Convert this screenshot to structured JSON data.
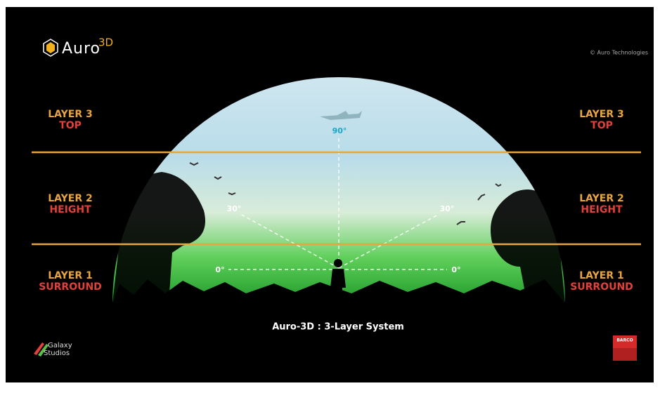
{
  "header": {
    "logo": "Auro",
    "logo_superscript": "3D",
    "copyright": "© Auro Technologies"
  },
  "layers": [
    {
      "label": "LAYER 3",
      "name": "TOP"
    },
    {
      "label": "LAYER 2",
      "name": "HEIGHT"
    },
    {
      "label": "LAYER 1",
      "name": "SURROUND"
    }
  ],
  "angles": {
    "top": "90°",
    "height": "30°",
    "ear": "0°"
  },
  "caption": "Auro-3D : 3-Layer System",
  "footer": {
    "studio_line1": "Galaxy",
    "studio_line2": "Studios",
    "partner": "BARCO"
  }
}
